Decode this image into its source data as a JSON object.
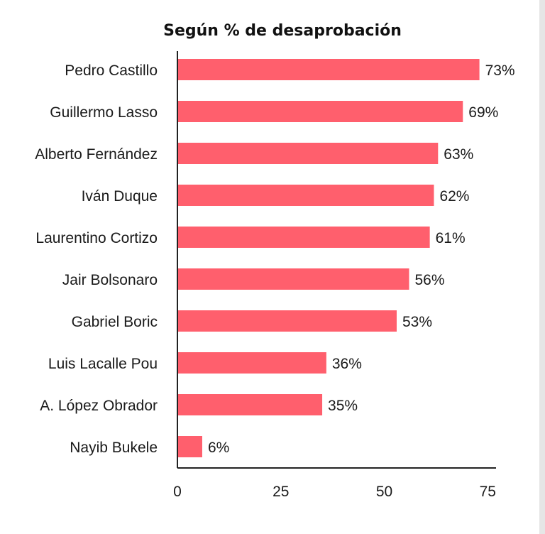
{
  "chart_data": {
    "type": "bar",
    "orientation": "horizontal",
    "title": "Según % de desaprobación",
    "categories": [
      "Pedro Castillo",
      "Guillermo Lasso",
      "Alberto Fernández",
      "Iván Duque",
      "Laurentino Cortizo",
      "Jair Bolsonaro",
      "Gabriel Boric",
      "Luis Lacalle Pou",
      "A. López Obrador",
      "Nayib Bukele"
    ],
    "values": [
      73,
      69,
      63,
      62,
      61,
      56,
      53,
      36,
      35,
      6
    ],
    "value_labels": [
      "73%",
      "69%",
      "63%",
      "62%",
      "61%",
      "56%",
      "53%",
      "36%",
      "35%",
      "6%"
    ],
    "xlim": [
      0,
      77
    ],
    "xticks": [
      0,
      25,
      50,
      75
    ],
    "xlabel": "",
    "ylabel": "",
    "grid": false,
    "bar_color": "#ff5f6d",
    "axis_color": "#222222"
  }
}
